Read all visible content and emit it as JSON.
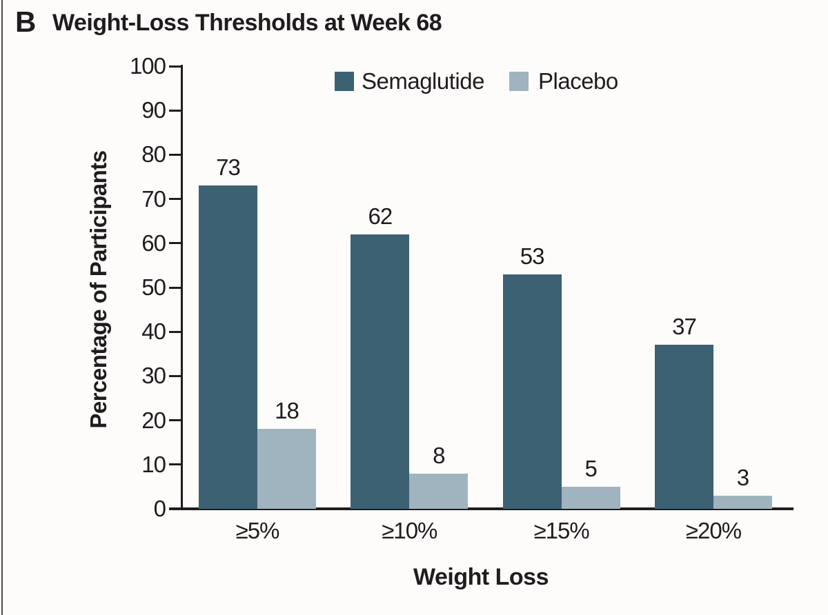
{
  "panel": {
    "letter": "B",
    "title": "Weight-Loss Thresholds at Week 68"
  },
  "colors": {
    "semaglutide": "#3c6173",
    "placebo": "#9fb4be",
    "axis": "#1e1c1c",
    "text": "#1e1c1c",
    "background": "#fdfcfb",
    "left_border": "#4d4d4d"
  },
  "legend": {
    "items": [
      {
        "label": "Semaglutide",
        "color_key": "semaglutide"
      },
      {
        "label": "Placebo",
        "color_key": "placebo"
      }
    ]
  },
  "chart_data": {
    "type": "bar",
    "title": "Weight-Loss Thresholds at Week 68",
    "categories": [
      "≥5%",
      "≥10%",
      "≥15%",
      "≥20%"
    ],
    "series": [
      {
        "name": "Semaglutide",
        "color_key": "semaglutide",
        "values": [
          73,
          62,
          53,
          37
        ]
      },
      {
        "name": "Placebo",
        "color_key": "placebo",
        "values": [
          18,
          8,
          5,
          3
        ]
      }
    ],
    "bar_labels": [
      [
        73,
        62,
        53,
        37
      ],
      [
        18,
        8,
        5,
        3
      ]
    ],
    "xlabel": "Weight Loss",
    "ylabel": "Percentage of Participants",
    "ylim": [
      0,
      100
    ],
    "yticks": [
      0,
      10,
      20,
      30,
      40,
      50,
      60,
      70,
      80,
      90,
      100
    ],
    "grid": false,
    "legend_position": "top-center"
  }
}
